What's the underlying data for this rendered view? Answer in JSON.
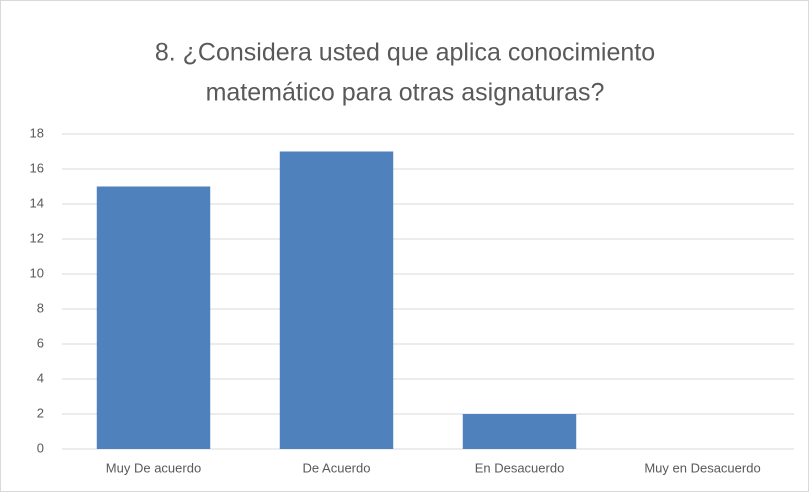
{
  "chart_data": {
    "type": "bar",
    "title": [
      "8. ¿Considera usted que aplica conocimiento",
      "matemático para otras asignaturas?"
    ],
    "categories": [
      "Muy De acuerdo",
      "De Acuerdo",
      "En Desacuerdo",
      "Muy en Desacuerdo"
    ],
    "values": [
      15,
      17,
      2,
      0
    ],
    "color": "#4f81bd",
    "ylim": [
      0,
      18
    ],
    "yticks": [
      0,
      2,
      4,
      6,
      8,
      10,
      12,
      14,
      16,
      18
    ],
    "grid": true
  }
}
